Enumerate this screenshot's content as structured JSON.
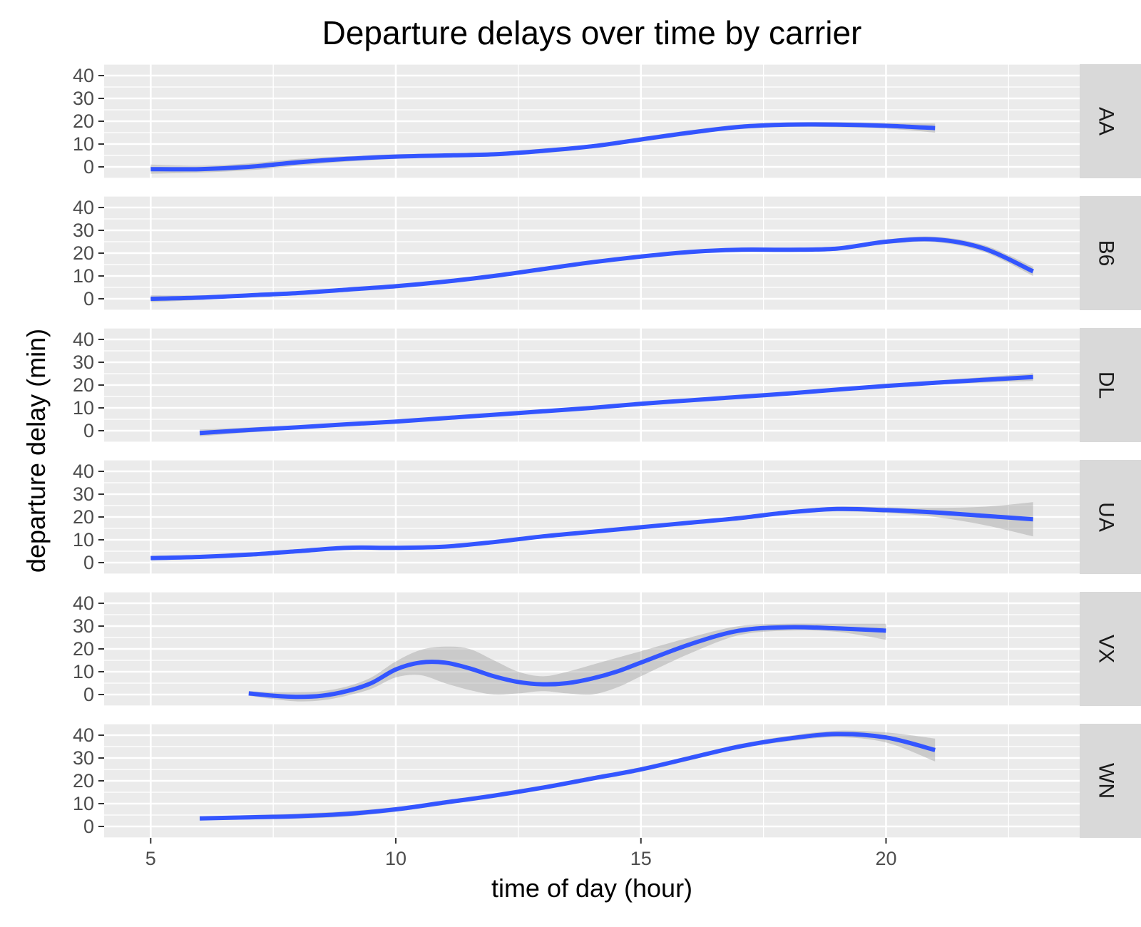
{
  "chart_data": {
    "type": "line",
    "title": "Departure delays over time by carrier",
    "xlabel": "time of day (hour)",
    "ylabel": "departure delay (min)",
    "xlim": [
      4.05,
      23.95
    ],
    "ylim": [
      -5,
      45
    ],
    "x_ticks": [
      5,
      10,
      15,
      20
    ],
    "y_ticks": [
      0,
      10,
      20,
      30,
      40
    ],
    "grid": true,
    "facets": "rows",
    "colors": {
      "line": "#3355ff",
      "ribbon": "#999999",
      "panel_bg": "#ebebeb",
      "grid": "#ffffff",
      "strip_bg": "#d9d9d9"
    },
    "series": [
      {
        "name": "AA",
        "x": [
          5,
          6,
          7,
          8,
          9,
          10,
          11,
          12,
          13,
          14,
          15,
          16,
          17,
          18,
          19,
          20,
          21
        ],
        "y": [
          -1,
          -1,
          0,
          2,
          3.5,
          4.5,
          5,
          5.5,
          7,
          9,
          12,
          15,
          17.5,
          18.5,
          18.5,
          18,
          17
        ],
        "ci_low": [
          -3,
          -2.5,
          -1.5,
          0.5,
          2.3,
          3.5,
          4.2,
          4.6,
          6,
          8.1,
          11,
          14,
          16.5,
          17.5,
          17.4,
          16.8,
          15
        ],
        "ci_high": [
          1,
          0.5,
          1.5,
          3.5,
          4.7,
          5.5,
          5.8,
          6.4,
          8,
          9.9,
          13,
          16,
          18.5,
          19.5,
          19.6,
          19.2,
          19
        ]
      },
      {
        "name": "B6",
        "x": [
          5,
          6,
          7,
          8,
          9,
          10,
          11,
          12,
          13,
          14,
          15,
          16,
          17,
          18,
          19,
          20,
          21,
          22,
          23
        ],
        "y": [
          0,
          0.5,
          1.5,
          2.5,
          4,
          5.5,
          7.5,
          10,
          13,
          16,
          18.5,
          20.5,
          21.5,
          21.5,
          22,
          25,
          26,
          22,
          12
        ],
        "ci_low": [
          -1.5,
          -0.5,
          0.7,
          1.8,
          3.4,
          4.9,
          6.9,
          9.4,
          12.4,
          15.4,
          17.9,
          19.8,
          20.8,
          20.8,
          21.2,
          24,
          24.8,
          20.5,
          10
        ],
        "ci_high": [
          1.5,
          1.5,
          2.3,
          3.2,
          4.6,
          6.1,
          8.1,
          10.6,
          13.6,
          16.6,
          19.1,
          21.2,
          22.2,
          22.2,
          22.8,
          26,
          27.2,
          23.5,
          14
        ]
      },
      {
        "name": "DL",
        "x": [
          6,
          7,
          8,
          9,
          10,
          11,
          12,
          13,
          14,
          15,
          16,
          17,
          18,
          19,
          20,
          21,
          22,
          23
        ],
        "y": [
          -1,
          0.3,
          1.5,
          2.8,
          4,
          5.5,
          7,
          8.5,
          10,
          11.8,
          13.3,
          14.8,
          16.3,
          18,
          19.6,
          21,
          22.3,
          23.5
        ],
        "ci_low": [
          -2.5,
          -0.8,
          0.7,
          2.2,
          3.5,
          5.1,
          6.6,
          8.1,
          9.6,
          11.4,
          12.9,
          14.4,
          15.8,
          17.4,
          18.9,
          20.1,
          21.1,
          21.8
        ],
        "ci_high": [
          0.5,
          1.4,
          2.3,
          3.4,
          4.5,
          5.9,
          7.4,
          8.9,
          10.4,
          12.2,
          13.7,
          15.2,
          16.8,
          18.6,
          20.3,
          21.9,
          23.5,
          25.2
        ]
      },
      {
        "name": "UA",
        "x": [
          5,
          6,
          7,
          8,
          9,
          10,
          11,
          12,
          13,
          14,
          15,
          16,
          17,
          18,
          19,
          20,
          21,
          22,
          23
        ],
        "y": [
          2,
          2.5,
          3.5,
          5,
          6.5,
          6.5,
          7,
          9,
          11.5,
          13.5,
          15.5,
          17.5,
          19.5,
          22,
          23.5,
          23,
          22,
          20.5,
          19
        ],
        "ci_low": [
          1,
          1.8,
          2.9,
          4.4,
          5.8,
          5.8,
          6.4,
          8.4,
          10.9,
          12.9,
          14.9,
          16.8,
          18.8,
          21.2,
          22.5,
          21.8,
          20,
          16.5,
          11.5
        ],
        "ci_high": [
          3,
          3.2,
          4.1,
          5.6,
          7.2,
          7.2,
          7.6,
          9.6,
          12.1,
          14.1,
          16.1,
          18.2,
          20.2,
          22.8,
          24.5,
          24.2,
          24,
          24.5,
          26.5
        ]
      },
      {
        "name": "VX",
        "x": [
          7,
          7.5,
          8,
          8.5,
          9,
          9.5,
          10,
          10.5,
          11,
          11.5,
          12,
          12.5,
          13,
          13.5,
          14,
          14.5,
          15,
          16,
          17,
          18,
          19,
          20
        ],
        "y": [
          0.5,
          -0.5,
          -1,
          -0.5,
          1.5,
          5,
          11,
          14,
          14,
          11.5,
          8,
          5.5,
          4.5,
          5,
          7,
          10,
          14,
          22,
          28,
          29.5,
          29,
          28
        ],
        "ci_low": [
          -0.5,
          -2,
          -3,
          -2.5,
          -0.5,
          2.5,
          7.5,
          8.5,
          5,
          2,
          0,
          0.5,
          1.5,
          0.5,
          0,
          3,
          8,
          18,
          26,
          28,
          27.5,
          24
        ],
        "ci_high": [
          1.5,
          1,
          1,
          1.5,
          3.5,
          7.5,
          14.5,
          19.5,
          21,
          20,
          15,
          10,
          8,
          10,
          13,
          16,
          19,
          25,
          30,
          31,
          31,
          31
        ]
      },
      {
        "name": "WN",
        "x": [
          6,
          7,
          8,
          9,
          10,
          11,
          12,
          13,
          14,
          15,
          16,
          17,
          18,
          19,
          20,
          21
        ],
        "y": [
          3.5,
          4,
          4.5,
          5.5,
          7.5,
          10.5,
          13.5,
          17,
          21,
          25,
          30,
          35,
          38.5,
          40.5,
          39,
          33.5
        ],
        "ci_low": [
          2.8,
          3,
          3.4,
          4.3,
          6.5,
          9.5,
          12.5,
          16,
          20,
          24,
          29,
          34,
          37.3,
          39.1,
          36.8,
          28.5
        ],
        "ci_high": [
          4.2,
          5,
          5.6,
          6.7,
          8.5,
          11.5,
          14.5,
          18,
          22,
          26,
          31,
          36,
          39.7,
          41.9,
          41.2,
          38.5
        ]
      }
    ]
  }
}
